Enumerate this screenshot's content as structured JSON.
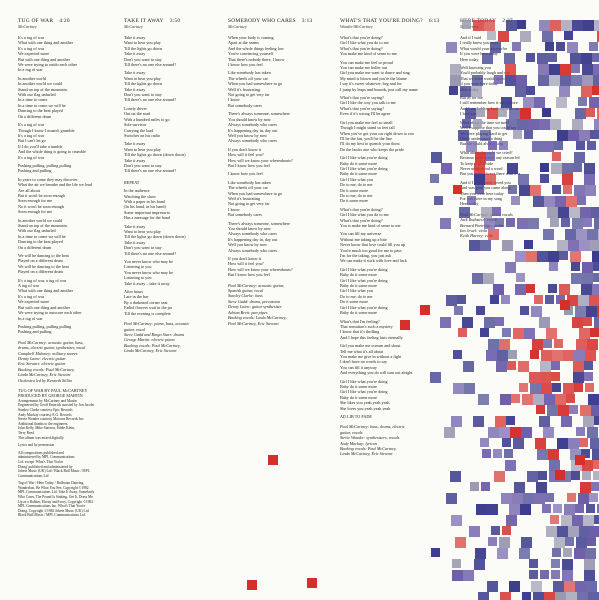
{
  "colors": {
    "paper": "#fbfbf8",
    "red": "#d42f2b",
    "blue": "#3a3a8c",
    "purple": "#6a5aa8",
    "grey": "#9a98b0"
  },
  "col1": {
    "title": "TUG OF WAR",
    "duration": "4:20",
    "credit": "McCartney",
    "lines": [
      "It's a tug of war",
      "What with one thing and another",
      "It's a tug of war",
      "We expected more",
      "But with one thing and another",
      "We were trying to outdo each other",
      "In a tug of war",
      "",
      "In another world",
      "In another world we could",
      "Stand on top of the mountain",
      "With our flag unfurled",
      "In a time to come",
      "In a time to come we will be",
      "Dancing to the beat played",
      "On a different drum",
      "",
      "It's a tug of war",
      "Though I know I mustn't grumble",
      "It's a tug of war",
      "But I can't let go",
      "If I do you'll take a tumble",
      "And the whole thing is going to crumble",
      "It's a tug of war",
      "",
      "Pushing pulling, pulling pulling",
      "Pushing and pulling",
      "",
      "In years to come they may discover",
      "What the air we breathe and the life we lead",
      "Are all about",
      "But it won't be soon enough",
      "Soon enough for me",
      "No it won't be soon enough",
      "Soon enough for me",
      "",
      "In another world we could",
      "Stand on top of the mountain",
      "With our flag unfurled",
      "In a time to come we will be",
      "Dancing to the beat played",
      "On a different drum",
      "",
      "We will be dancing to the beat",
      "Played on a different drum",
      "We will be dancing to the beat",
      "Played on a different drum",
      "",
      "It's a tug of war, a tug of war",
      "A tug of war",
      "What with one thing and another",
      "It's a tug of war",
      "We expected more",
      "But with one thing and another",
      "We were trying to outscore each other",
      "In a tug of war",
      "",
      "Pushing pulling, pulling pulling",
      "Pushing and pulling"
    ],
    "credits": [
      "Paul McCartney: acoustic guitar, bass,",
      "drums, electric guitar, synthesizer, vocal",
      "Campbell Maloney: military snares",
      "Denny Laine: electric guitar",
      "Eric Stewart: electric guitar",
      "Backing vocals: Paul McCartney,",
      "Linda McCartney, Eric Stewart",
      "Orchestra led by Kenneth Sillito"
    ],
    "producer": "TUG OF WAR BY PAUL McCARTNEY",
    "producer2": "PRODUCED BY GEORGE MARTIN",
    "notes": [
      "Arrangements by McCartney and Martin",
      "Engineered by Geoff Emerick assisted by Jon Jacobs",
      "Stanley Clarke courtesy Epic Records",
      "Andy Mackay courtesy E.G. Records",
      "Stevie Wonder courtesy Motown Records Inc.",
      "Additional thanks to the engineers,",
      "John Kelly, Mike Stavrou, Eddie Klein,",
      "Terry Reed.",
      "This album was mixed digitally.",
      "",
      "Lyrics and by permission",
      "",
      "All compositions published and",
      "administered by MPL Communications",
      "Ltd. except 'What's That You're",
      "Doing' published and administered by",
      "Jobete Music (UK) Ltd / Black Bull Music / MPL",
      "Communications Ltd",
      "",
      "Tug of War / Here Today / Ballroom Dancing,",
      "Wanderlust, Be What You See, Copyright ©1982",
      "MPL Communications Ltd. Take It Away, Somebody",
      "Who Cares, The Pound Is Sinking, Get It, Dress Me",
      "Up as a Robber, Ebony and Ivory, Copyright ©1982",
      "MPL Communications Inc. What's That You're",
      "Doing, Copyright ©1982 Jobete Music (UK) Ltd.",
      "Black Bull Music / MPL Communications Ltd."
    ]
  },
  "col2": {
    "title": "TAKE IT AWAY",
    "duration": "3:50",
    "credit": "McCartney",
    "lines": [
      "Take it away",
      "Want to hear you play",
      "Till the lights go down",
      "Take it away",
      "Don't you want to stay",
      "Till there's no one else around?",
      "",
      "Take it away",
      "Want to hear you play",
      "Till the lights go down",
      "Take it away",
      "Don't you want to stay",
      "Till there's no one else around?",
      "",
      "Lonely driver",
      "Out on the road",
      "With a hundred miles to go",
      "Sole survivor",
      "Carrying the load",
      "Switches on his radio",
      "",
      "Take it away",
      "Want to hear you play",
      "Till the lights go down (down down)",
      "Take it away",
      "Don't you want to stay",
      "Till there's no one else around?",
      "",
      "",
      "REPEAT",
      "",
      "In the audience",
      "Watching the show",
      "With a paper in his hand",
      "(In his hand, in his hand)",
      "Some important impresario",
      "Has a message for the band",
      "",
      "Take it away",
      "Want to hear you play",
      "Till the lights go down (down down)",
      "Take it away",
      "Don't you want to stay",
      "Till there's no one else around?",
      "",
      "You never know who may be",
      "Listening to you",
      "You never know who may be",
      "Listening to you",
      "Take it away – take it away",
      "",
      "After hours",
      "Late in the bar",
      "By a darkened corner seat",
      "Faded flowers wait in the jar",
      "Till the evening is complete"
    ],
    "credits": [
      "Paul McCartney: piano, bass, acoustic",
      "guitar, vocal",
      "Steve Gadd and Ringo Starr: drums",
      "George Martin: electric piano",
      "Backing vocals: Paul McCartney,",
      "Linda McCartney, Eric Stewart"
    ]
  },
  "col3": {
    "title": "SOMEBODY WHO CARES",
    "duration": "3:13",
    "credit": "McCartney",
    "lines": [
      "When your body is coming",
      "Apart at the seams",
      "And the whole things feeling low",
      "You're convincing yourself",
      "That there's nobody there, I know",
      "I know how you feel",
      "",
      "Like somebody has taken",
      "The wheels off your car",
      "When you had somewhere to go",
      "Well it's frustrating",
      "Not going to get very far",
      "I know",
      "But somebody cares",
      "",
      "There's always someone, somewhere",
      "You should know by now",
      "Always somebody who cares",
      "It's happening day in, day out",
      "Well you know by now",
      "Always somebody who cares",
      "",
      "If you don't know it",
      "How will it feel you?",
      "How will we know your whereabouts?",
      "But I know how you feel",
      "",
      "I know how you feel",
      "",
      "Like somebody has taken",
      "The wheels off your car",
      "When you had somewhere to go",
      "Well it's frustrating",
      "Not going to get very far",
      "I know",
      "But somebody cares",
      "",
      "There's always someone, somewhere",
      "You should know by now",
      "Always somebody who cares",
      "It's happening day in, day out",
      "Well you know by now",
      "Always somebody who cares",
      "",
      "If you don't know it",
      "How will it feel you?",
      "How will we know your whereabouts?",
      "But I know how you feel"
    ],
    "credits": [
      "Paul McCartney: acoustic guitar,",
      "Spanish guitar, vocal",
      "Stanley Clarke: bass",
      "Steve Gadd: drums, percussion",
      "Denny Laine: guitar synthesizer",
      "Adrian Brett: pan pipes",
      "Backing vocals: Linda McCartney,",
      "Paul McCartney, Eric Stewart"
    ]
  },
  "col4": {
    "title": "WHAT'S THAT YOU'RE DOING?",
    "duration": "6:13",
    "credit": "Wonder/McCartney",
    "lines": [
      "What's that you're doing?",
      "Girl I like what you do to me",
      "What's that you're doing?",
      "You make me kind of sense to me",
      "",
      "You can make me feel so proud",
      "You can make me holler out",
      "Girl you make me want to dance and sing",
      "My mind is blown and you're the blame",
      "I say it's sweet whatever, beg and for",
      "I jump by leaps and bounds, just call my name",
      "",
      "What's that you're saying?",
      "Girl I like the way you talk to me",
      "What's that you're saying?",
      "Even if it's wrong I'll be agree",
      "",
      "Girl you make me feel so small",
      "Though I might stand so feet tall",
      "When you've got your car right down to zoo",
      "I'll be the fan, you'll be the line",
      "I'll do my best to quench your thirst",
      "Do the bucks one who keeps the pride",
      "",
      "Girl I like what you're doing",
      "Baby do it some more",
      "Girl I like what you're doing",
      "Baby do it some more",
      "Girl I like what you",
      "Do to me, do to me",
      "Do it some more",
      "Do to me, do to me",
      "Do it some more",
      "",
      "What's that you're doing?",
      "Girl I like what you do to me",
      "What's that you're doing?",
      "You is make me kind of sense to me",
      "",
      "You can fill my universe",
      "Without me taking up a bite",
      "Never know that love could fill you up",
      "You're much too good for me to pass",
      "I'm for the taking, you just ask",
      "We can make it stick with love and luck",
      "",
      "Girl I like what you're doing",
      "Baby do it some more",
      "Girl I like what you're doing",
      "Baby do it some more",
      "Girl I like what you",
      "Do to me, do to me",
      "Do it some more",
      "Girl I like what you're doing",
      "Baby do it some more",
      "",
      "What's that I'm feeling?",
      "That sensation's such a mystery",
      "I know that it's thrilling",
      "And I hope this feeling lasts eternally",
      "",
      "Girl you make me scream and shout",
      "Tell me what it's all about",
      "You make me give in without a fight",
      "I don't have no words to say",
      "You can fill it anyway",
      "And everything you do will turn out alright",
      "",
      "Girl I like what you're doing",
      "Baby do it some more",
      "Girl I like what you're doing",
      "Baby do it some more",
      "She likes you yeah yeah yeah",
      "She loves you yeah yeah yeah",
      "",
      "AD LIB TO FADE"
    ],
    "credits": [
      "Paul McCartney: bass, drums, electric",
      "guitar, vocals",
      "Stevie Wonder: synthesizers, vocals",
      "Andy Mackay: lyricon",
      "Backing vocals: Paul McCartney,",
      "Linda McCartney, Eric Stewart"
    ]
  },
  "col5": {
    "title": "HERE TODAY",
    "duration": "2:27",
    "credit": "McCartney",
    "lines": [
      "And if I said",
      "I really knew you well",
      "What would your answer be",
      "If you were here today",
      "Here today",
      "",
      "Well knowing you",
      "You'd probably laugh and say",
      "That we were worlds apart",
      "If you were here today",
      "Here today",
      "",
      "But as for me",
      "I still remember how it was before",
      "And I am holding back the tears no more",
      "I love you",
      "",
      "What about the time we met?",
      "Well I suppose that you could say",
      "We were playing hard to get",
      "Didn't understand a thing",
      "But we could always sing",
      "",
      "What about the night we cried?",
      "Because there wasn't any reason left",
      "To keep it all inside",
      "Never understood a word",
      "But you were always there with a smile",
      "",
      "And if I say I really loved you",
      "And was glad you came along",
      "Then you were here today",
      "For you were in my song",
      "Here today"
    ],
    "credits": [
      "Paul McCartney: guitar, vocals",
      "Jack Rothstein: violin",
      "Bernard Partridge: violin",
      "Ian Jewel: viola",
      "Keith Harvey: cello"
    ]
  }
}
